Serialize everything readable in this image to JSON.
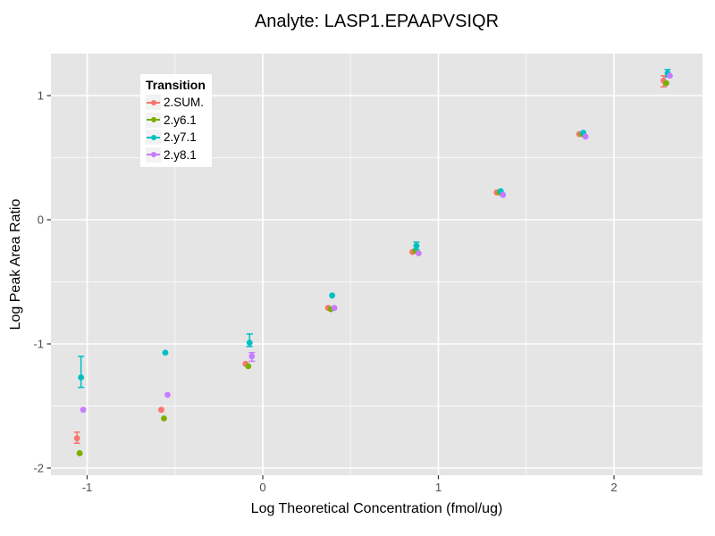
{
  "chart_data": {
    "type": "scatter",
    "title": "Analyte: LASP1.EPAAPVSIQR",
    "xlabel": "Log Theoretical Concentration (fmol/ug)",
    "ylabel": "Log Peak Area Ratio",
    "xlim": [
      -1.21,
      2.5
    ],
    "ylim": [
      -2.06,
      1.34
    ],
    "x_ticks": [
      -1,
      0,
      1,
      2
    ],
    "y_ticks": [
      1,
      0,
      -1,
      -2
    ],
    "x_minor_ticks": [
      -0.5,
      0.5,
      1.5
    ],
    "y_minor_ticks": [
      0.5,
      -0.5,
      -1.5
    ],
    "grid": "white major and minor gridlines on gray panel",
    "panel_color": "#E5E5E5",
    "tick_label_color": "#4D4D4D",
    "legend": {
      "title": "Transition",
      "position": "top-left-inside"
    },
    "series": [
      {
        "name": "2.SUM.",
        "color": "#F8766D",
        "points": [
          {
            "x": -1.04,
            "y": -1.76,
            "ylo": -1.8,
            "yhi": -1.71
          },
          {
            "x": -0.56,
            "y": -1.53
          },
          {
            "x": -0.08,
            "y": -1.16
          },
          {
            "x": 0.39,
            "y": -0.71
          },
          {
            "x": 0.87,
            "y": -0.26
          },
          {
            "x": 1.35,
            "y": 0.22
          },
          {
            "x": 1.82,
            "y": 0.69
          },
          {
            "x": 2.3,
            "y": 1.12,
            "ylo": 1.07,
            "yhi": 1.16
          }
        ]
      },
      {
        "name": "2.y6.1",
        "color": "#7CAE00",
        "points": [
          {
            "x": -1.04,
            "y": -1.88
          },
          {
            "x": -0.56,
            "y": -1.6
          },
          {
            "x": -0.08,
            "y": -1.18
          },
          {
            "x": 0.39,
            "y": -0.72
          },
          {
            "x": 0.87,
            "y": -0.25
          },
          {
            "x": 1.35,
            "y": 0.22
          },
          {
            "x": 1.82,
            "y": 0.69
          },
          {
            "x": 2.3,
            "y": 1.1
          }
        ]
      },
      {
        "name": "2.y7.1",
        "color": "#00BFC4",
        "points": [
          {
            "x": -1.04,
            "y": -1.27,
            "ylo": -1.35,
            "yhi": -1.1
          },
          {
            "x": -0.56,
            "y": -1.07
          },
          {
            "x": -0.08,
            "y": -0.99,
            "ylo": -1.02,
            "yhi": -0.92
          },
          {
            "x": 0.39,
            "y": -0.61
          },
          {
            "x": 0.87,
            "y": -0.21,
            "ylo": -0.24,
            "yhi": -0.18
          },
          {
            "x": 1.35,
            "y": 0.23
          },
          {
            "x": 1.82,
            "y": 0.7
          },
          {
            "x": 2.3,
            "y": 1.18,
            "ylo": 1.15,
            "yhi": 1.21
          }
        ]
      },
      {
        "name": "2.y8.1",
        "color": "#C77CFF",
        "points": [
          {
            "x": -1.04,
            "y": -1.53
          },
          {
            "x": -0.56,
            "y": -1.41
          },
          {
            "x": -0.08,
            "y": -1.1,
            "ylo": -1.14,
            "yhi": -1.07
          },
          {
            "x": 0.39,
            "y": -0.71
          },
          {
            "x": 0.87,
            "y": -0.27
          },
          {
            "x": 1.35,
            "y": 0.2
          },
          {
            "x": 1.82,
            "y": 0.67
          },
          {
            "x": 2.3,
            "y": 1.16
          }
        ]
      }
    ]
  }
}
